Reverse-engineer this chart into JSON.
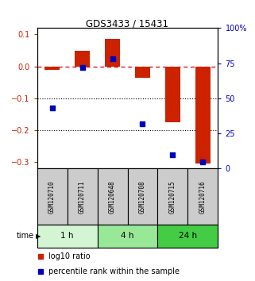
{
  "title": "GDS3433 / 15431",
  "samples": [
    "GSM120710",
    "GSM120711",
    "GSM120648",
    "GSM120708",
    "GSM120715",
    "GSM120716"
  ],
  "time_groups": [
    {
      "label": "1 h",
      "n_samples": 2,
      "color": "#d4f5d4"
    },
    {
      "label": "4 h",
      "n_samples": 2,
      "color": "#98e898"
    },
    {
      "label": "24 h",
      "n_samples": 2,
      "color": "#44cc44"
    }
  ],
  "log10_ratio": [
    -0.01,
    0.05,
    0.085,
    -0.035,
    -0.175,
    -0.305
  ],
  "percentile_rank": [
    0.43,
    0.72,
    0.78,
    0.32,
    0.1,
    0.05
  ],
  "ylim_left": [
    -0.32,
    0.12
  ],
  "ylim_right": [
    0.0,
    1.0
  ],
  "yticks_left": [
    -0.3,
    -0.2,
    -0.1,
    0.0,
    0.1
  ],
  "yticks_right": [
    0.0,
    0.25,
    0.5,
    0.75,
    1.0
  ],
  "ytick_labels_right": [
    "0",
    "25",
    "50",
    "75",
    "100%"
  ],
  "bar_color": "#cc2200",
  "dot_color": "#0000bb",
  "hline_color": "#dd0000",
  "legend_red_label": "log10 ratio",
  "legend_blue_label": "percentile rank within the sample",
  "left_tick_color": "#cc2200",
  "right_tick_color": "#0000bb",
  "sample_box_color": "#cccccc",
  "bar_width": 0.5
}
